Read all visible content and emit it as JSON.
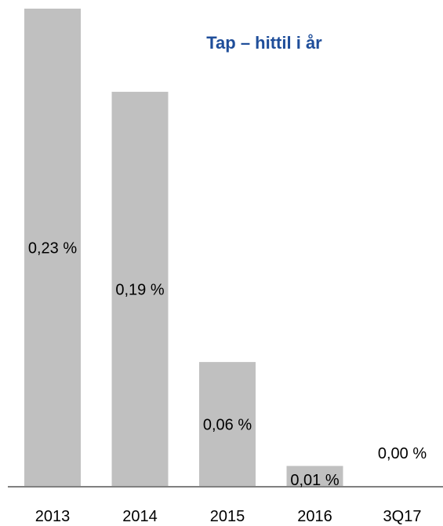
{
  "chart_data": {
    "type": "bar",
    "title": "Tap – hittil i år",
    "categories": [
      "2013",
      "2014",
      "2015",
      "2016",
      "3Q17"
    ],
    "values": [
      0.23,
      0.19,
      0.06,
      0.01,
      0.0
    ],
    "data_labels": [
      "0,23 %",
      "0,19 %",
      "0,06 %",
      "0,01 %",
      "0,00 %"
    ],
    "xlabel": "",
    "ylabel": "",
    "ylim": [
      0,
      0.23
    ],
    "grid": false,
    "legend": "none",
    "colors": {
      "bar": "#c0c0c0",
      "title": "#1f4e9a",
      "axis": "#808080",
      "text": "#000000"
    }
  }
}
